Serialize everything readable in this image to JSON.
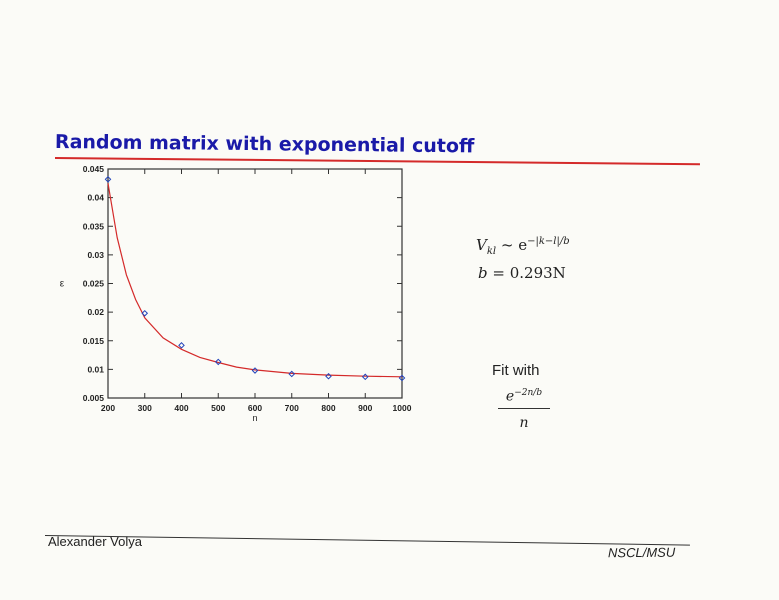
{
  "slide": {
    "title": "Random matrix with exponential cutoff",
    "author": "Alexander Volya",
    "institution": "NSCL/MSU",
    "accent_color": "#d42a2a",
    "title_color": "#1a1aa8"
  },
  "equations": {
    "line1": {
      "lhs": "V",
      "lhs_sub": "kl",
      "rel": " ~ e",
      "sup": "−|k−l|/b"
    },
    "line2": {
      "lhs": "b",
      "rhs": " = 0.293N"
    },
    "fit_label": "Fit with",
    "fit_numerator": "e",
    "fit_numerator_sup": "−2n/b",
    "fit_denominator": "n"
  },
  "chart_data": {
    "type": "scatter",
    "xlabel": "n",
    "ylabel": "ε",
    "xlim": [
      200,
      1000
    ],
    "ylim": [
      0.005,
      0.045
    ],
    "xticks": [
      "200",
      "300",
      "400",
      "500",
      "600",
      "700",
      "800",
      "900",
      "1000"
    ],
    "yticks": [
      "0.005",
      "0.01",
      "0.015",
      "0.02",
      "0.025",
      "0.03",
      "0.035",
      "0.04",
      "0.045"
    ],
    "grid": false,
    "series": [
      {
        "kind": "points",
        "color": "#2244bb",
        "x": [
          200,
          300,
          400,
          500,
          600,
          700,
          800,
          900,
          1000
        ],
        "y": [
          0.0432,
          0.0198,
          0.0142,
          0.0113,
          0.0098,
          0.0092,
          0.0088,
          0.0087,
          0.0085
        ]
      },
      {
        "kind": "fit_curve",
        "color": "#d42a2a",
        "x": [
          200,
          225,
          250,
          275,
          300,
          350,
          400,
          450,
          500,
          550,
          600,
          700,
          800,
          900,
          1000
        ],
        "y": [
          0.0425,
          0.033,
          0.0265,
          0.0222,
          0.019,
          0.0155,
          0.0135,
          0.0121,
          0.0112,
          0.0104,
          0.0099,
          0.0093,
          0.009,
          0.0088,
          0.0087
        ]
      }
    ]
  }
}
